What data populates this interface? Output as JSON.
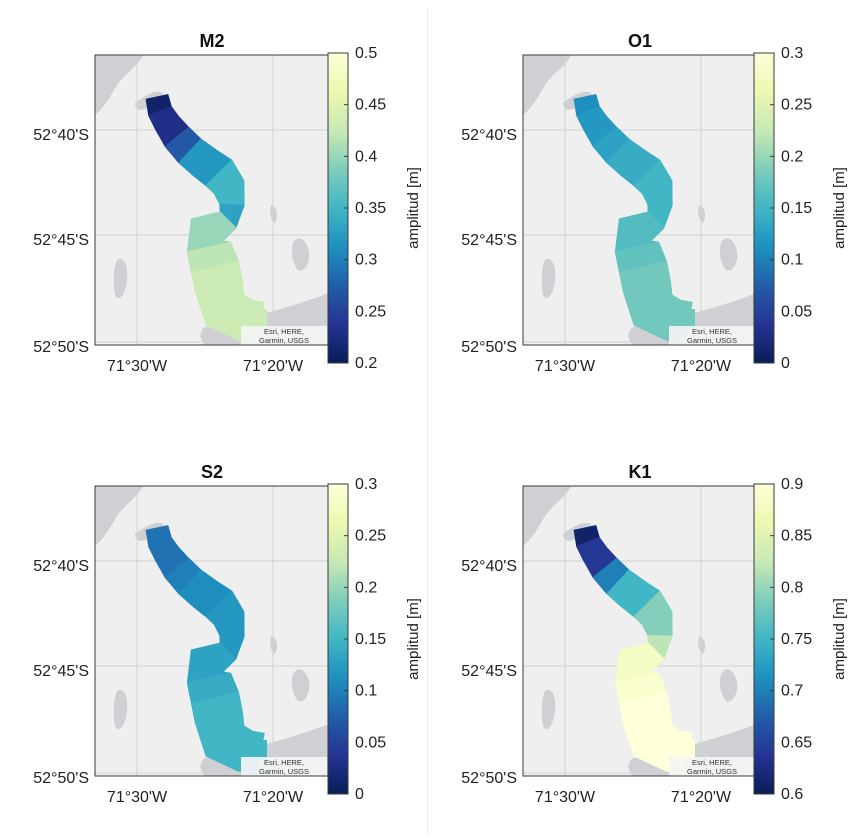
{
  "attribution_line1": "Esri, HERE,",
  "attribution_line2": "Garmin, USGS",
  "colorbar_label": "amplitud [m]",
  "panels": [
    {
      "title": "M2",
      "lat_ticks": [
        "52°40'S",
        "52°45'S",
        "52°50'S"
      ],
      "lon_ticks": [
        "71°30'W",
        "71°20'W"
      ],
      "colorbar": {
        "min": 0.2,
        "max": 0.5,
        "ticks": [
          "0.2",
          "0.25",
          "0.3",
          "0.35",
          "0.4",
          "0.45",
          "0.5"
        ]
      },
      "segments": [
        0.21,
        0.23,
        0.27,
        0.32,
        0.35,
        0.33,
        0.4,
        0.42,
        0.43,
        0.43
      ]
    },
    {
      "title": "O1",
      "lat_ticks": [
        "52°40'S",
        "52°45'S",
        "52°50'S"
      ],
      "lon_ticks": [
        "71°30'W",
        "71°20'W"
      ],
      "colorbar": {
        "min": 0,
        "max": 0.3,
        "ticks": [
          "0",
          "0.05",
          "0.1",
          "0.15",
          "0.2",
          "0.25",
          "0.3"
        ]
      },
      "segments": [
        0.11,
        0.12,
        0.13,
        0.14,
        0.15,
        0.15,
        0.16,
        0.17,
        0.18,
        0.18
      ]
    },
    {
      "title": "S2",
      "lat_ticks": [
        "52°40'S",
        "52°45'S",
        "52°50'S"
      ],
      "lon_ticks": [
        "71°30'W",
        "71°20'W"
      ],
      "colorbar": {
        "min": 0,
        "max": 0.3,
        "ticks": [
          "0",
          "0.05",
          "0.1",
          "0.15",
          "0.2",
          "0.25",
          "0.3"
        ]
      },
      "segments": [
        0.09,
        0.09,
        0.1,
        0.11,
        0.12,
        0.12,
        0.13,
        0.14,
        0.15,
        0.15
      ]
    },
    {
      "title": "K1",
      "lat_ticks": [
        "52°40'S",
        "52°45'S",
        "52°50'S"
      ],
      "lon_ticks": [
        "71°30'W",
        "71°20'W"
      ],
      "colorbar": {
        "min": 0.6,
        "max": 0.9,
        "ticks": [
          "0.6",
          "0.65",
          "0.7",
          "0.75",
          "0.8",
          "0.85",
          "0.9"
        ]
      },
      "segments": [
        0.61,
        0.64,
        0.7,
        0.75,
        0.79,
        0.82,
        0.88,
        0.89,
        0.9,
        0.9
      ]
    }
  ]
}
